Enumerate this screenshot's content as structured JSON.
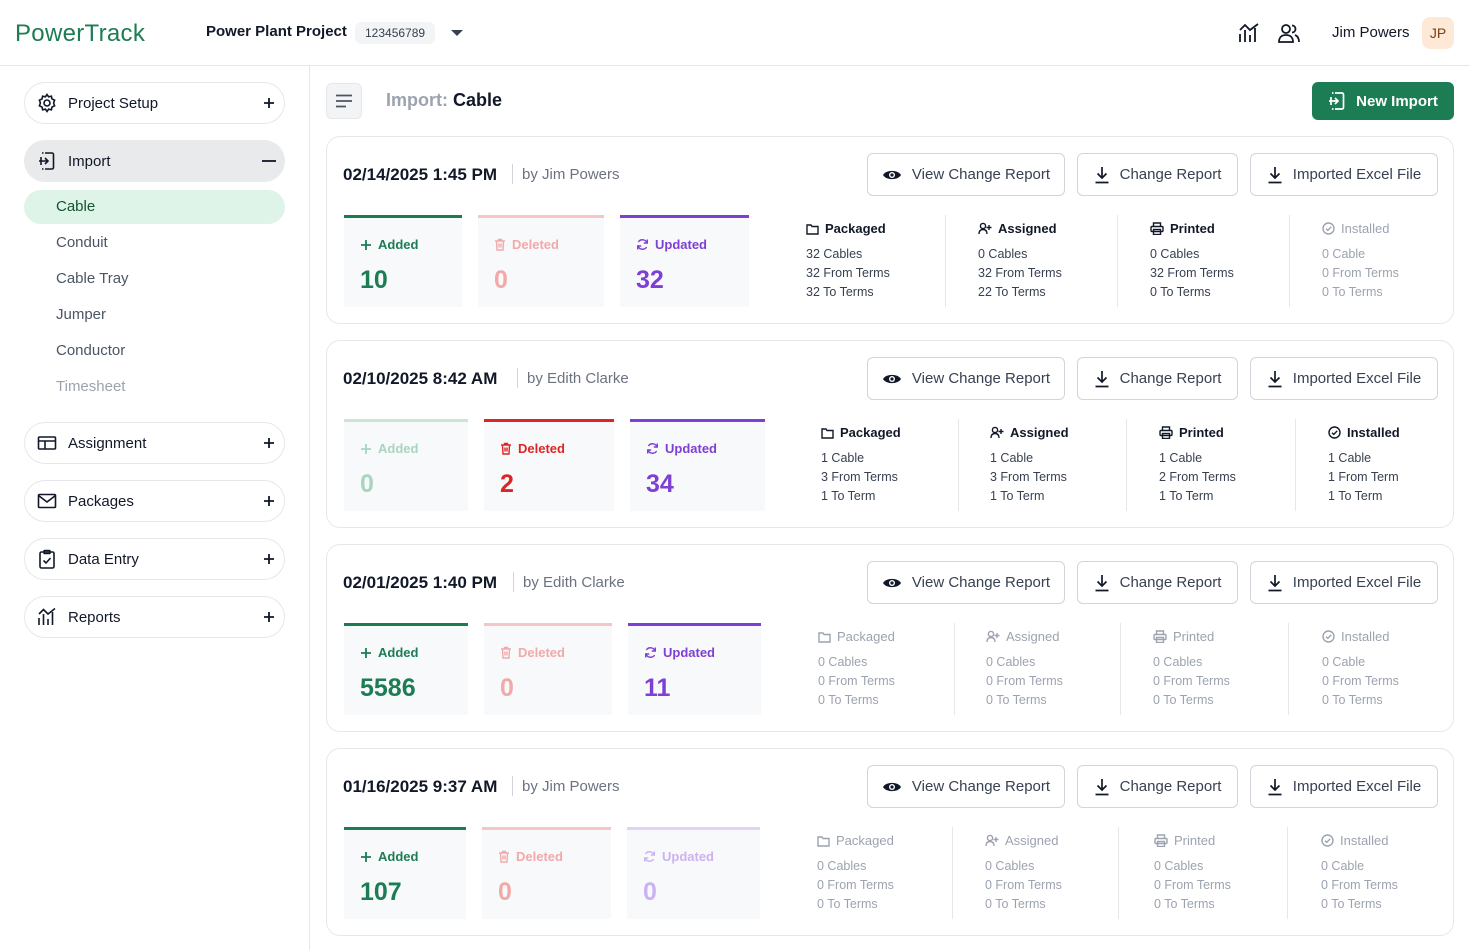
{
  "app": {
    "logo": "PowerTrack",
    "project_name": "Power Plant Project",
    "project_id": "123456789",
    "user_name": "Jim Powers",
    "user_initials": "JP"
  },
  "sidebar": {
    "project_setup": "Project Setup",
    "import": "Import",
    "import_items": [
      "Cable",
      "Conduit",
      "Cable Tray",
      "Jumper",
      "Conductor",
      "Timesheet"
    ],
    "assignment": "Assignment",
    "packages": "Packages",
    "data_entry": "Data Entry",
    "reports": "Reports"
  },
  "header": {
    "title_prefix": "Import:",
    "title": "Cable",
    "new_import": "New Import"
  },
  "buttons": {
    "view_change_report": "View Change Report",
    "change_report": "Change Report",
    "imported_excel": "Imported Excel File"
  },
  "imports": [
    {
      "datetime": "02/14/2025  1:45 PM",
      "by": "by Jim Powers",
      "added": {
        "label": "Added",
        "value": "10"
      },
      "deleted": {
        "label": "Deleted",
        "value": "0"
      },
      "updated": {
        "label": "Updated",
        "value": "32"
      },
      "packaged": {
        "title": "Packaged",
        "rows": [
          "32 Cables",
          "32 From Terms",
          "32 To Terms"
        ]
      },
      "assigned": {
        "title": "Assigned",
        "rows": [
          "0 Cables",
          "32 From Terms",
          "22 To Terms"
        ]
      },
      "printed": {
        "title": "Printed",
        "rows": [
          "0 Cables",
          "32 From Terms",
          "0 To Terms"
        ]
      },
      "installed": {
        "title": "Installed",
        "rows": [
          "0 Cable",
          "0 From Terms",
          "0 To Terms"
        ]
      }
    },
    {
      "datetime": "02/10/2025  8:42 AM",
      "by": "by Edith Clarke",
      "added": {
        "label": "Added",
        "value": "0"
      },
      "deleted": {
        "label": "Deleted",
        "value": "2"
      },
      "updated": {
        "label": "Updated",
        "value": "34"
      },
      "packaged": {
        "title": "Packaged",
        "rows": [
          "1 Cable",
          "3 From Terms",
          "1 To Term"
        ]
      },
      "assigned": {
        "title": "Assigned",
        "rows": [
          "1 Cable",
          "3 From Terms",
          "1 To Term"
        ]
      },
      "printed": {
        "title": "Printed",
        "rows": [
          "1 Cable",
          "2 From Terms",
          "1 To Term"
        ]
      },
      "installed": {
        "title": "Installed",
        "rows": [
          "1 Cable",
          "1 From Term",
          "1 To Term"
        ]
      }
    },
    {
      "datetime": "02/01/2025  1:40 PM",
      "by": "by Edith Clarke",
      "added": {
        "label": "Added",
        "value": "5586"
      },
      "deleted": {
        "label": "Deleted",
        "value": "0"
      },
      "updated": {
        "label": "Updated",
        "value": "11"
      },
      "packaged": {
        "title": "Packaged",
        "rows": [
          "0 Cables",
          "0 From Terms",
          "0 To Terms"
        ]
      },
      "assigned": {
        "title": "Assigned",
        "rows": [
          "0 Cables",
          "0 From Terms",
          "0 To Terms"
        ]
      },
      "printed": {
        "title": "Printed",
        "rows": [
          "0 Cables",
          "0 From Terms",
          "0 To Terms"
        ]
      },
      "installed": {
        "title": "Installed",
        "rows": [
          "0 Cable",
          "0 From Terms",
          "0 To Terms"
        ]
      }
    },
    {
      "datetime": "01/16/2025  9:37 AM",
      "by": "by Jim Powers",
      "added": {
        "label": "Added",
        "value": "107"
      },
      "deleted": {
        "label": "Deleted",
        "value": "0"
      },
      "updated": {
        "label": "Updated",
        "value": "0"
      },
      "packaged": {
        "title": "Packaged",
        "rows": [
          "0 Cables",
          "0 From Terms",
          "0 To Terms"
        ]
      },
      "assigned": {
        "title": "Assigned",
        "rows": [
          "0 Cables",
          "0 From Terms",
          "0 To Terms"
        ]
      },
      "printed": {
        "title": "Printed",
        "rows": [
          "0 Cables",
          "0 From Terms",
          "0 To Terms"
        ]
      },
      "installed": {
        "title": "Installed",
        "rows": [
          "0 Cable",
          "0 From Terms",
          "0 To Terms"
        ]
      }
    }
  ],
  "colors": {
    "brand": "#1c7c54",
    "added": "#1c7c54",
    "deleted": "#dc2626",
    "updated": "#7e3fd4"
  }
}
